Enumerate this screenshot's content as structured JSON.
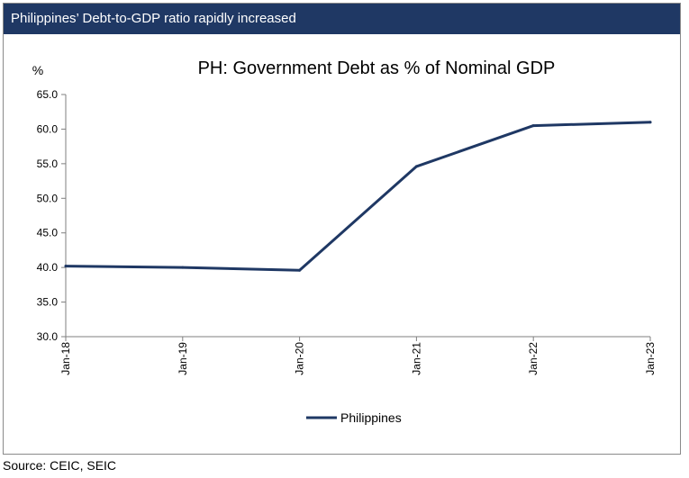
{
  "header": {
    "title": "Philippines’ Debt-to-GDP ratio rapidly increased"
  },
  "footer": {
    "source": "Source: CEIC, SEIC"
  },
  "colors": {
    "header_bg": "#1f3864",
    "series_line": "#1f3864",
    "axis": "#7f7f7f"
  },
  "chart_data": {
    "type": "line",
    "title": "PH: Government Debt as % of Nominal GDP",
    "ylabel": "%",
    "xlabel": "",
    "x": [
      "Jan-18",
      "Jan-19",
      "Jan-20",
      "Jan-21",
      "Jan-22",
      "Jan-23"
    ],
    "ylim": [
      30.0,
      65.0
    ],
    "yticks": [
      "30.0",
      "35.0",
      "40.0",
      "45.0",
      "50.0",
      "55.0",
      "60.0",
      "65.0"
    ],
    "grid": false,
    "legend_position": "bottom",
    "series": [
      {
        "name": "Philippines",
        "values": [
          40.2,
          40.0,
          39.6,
          54.6,
          60.5,
          61.0
        ]
      }
    ]
  }
}
